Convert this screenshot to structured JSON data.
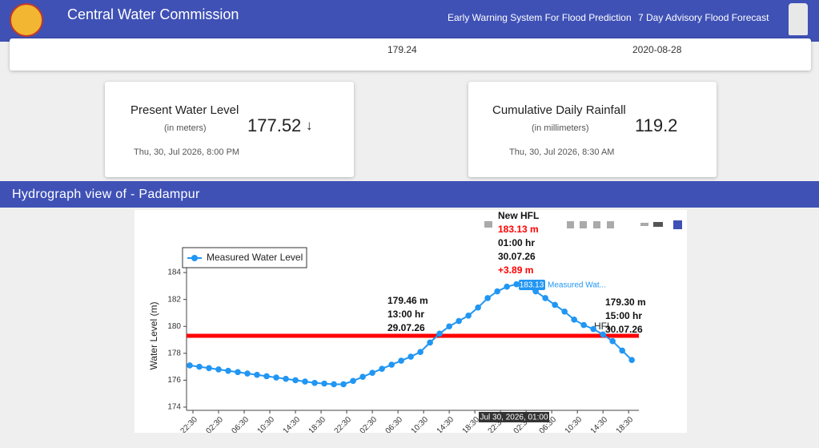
{
  "header": {
    "title": "Central Water Commission",
    "nav": [
      "Early Warning System For Flood Prediction",
      "7 Day Advisory Flood Forecast"
    ]
  },
  "summary_row": {
    "values": [
      "179.24",
      "2020-08-28"
    ]
  },
  "cards": [
    {
      "title": "Present Water Level",
      "unit": "(in meters)",
      "value": "177.52",
      "trend": "↓",
      "time": "Thu, 30, Jul 2026, 8:00 PM"
    },
    {
      "title": "Cumulative Daily Rainfall",
      "unit": "(in millimeters)",
      "value": "119.2",
      "time": "Thu, 30, Jul 2026, 8:30 AM"
    }
  ],
  "section_title": "Hydrograph view of - Padampur",
  "chart_data": {
    "type": "line",
    "ylabel": "Water Level (m)",
    "x": [
      -0.5,
      1,
      2.5,
      4,
      5.5,
      7,
      8.5,
      10,
      11.5,
      13,
      14.5,
      16,
      17.5,
      19,
      20.5,
      22,
      23.5,
      25,
      26.5,
      28,
      29.5,
      31,
      32.5,
      34,
      35.5,
      37,
      38.5,
      40,
      41.5,
      43,
      44.5,
      46,
      47.5,
      49,
      50.5,
      52,
      53.5,
      55,
      56.5,
      58,
      59.5,
      61,
      62.5,
      64,
      65.5,
      67,
      68.5
    ],
    "series": [
      {
        "name": "Measured Water Level",
        "color": "#2196f3",
        "values": [
          177.1,
          177.0,
          176.9,
          176.8,
          176.7,
          176.6,
          176.5,
          176.4,
          176.3,
          176.2,
          176.1,
          176.0,
          175.9,
          175.8,
          175.75,
          175.7,
          175.7,
          175.95,
          176.25,
          176.55,
          176.85,
          177.15,
          177.45,
          177.75,
          178.1,
          178.8,
          179.46,
          180.0,
          180.4,
          180.8,
          181.4,
          182.1,
          182.6,
          182.95,
          183.13,
          183.0,
          182.6,
          182.1,
          181.6,
          181.1,
          180.5,
          180.1,
          179.8,
          179.4,
          178.9,
          178.2,
          177.5
        ]
      }
    ],
    "hfl": {
      "value": 179.3,
      "label": "HFL",
      "color": "#ff0000"
    },
    "xlim": [
      -1,
      69.6
    ],
    "ylim": [
      174,
      184.6
    ],
    "yticks": [
      174,
      176,
      178,
      180,
      182,
      184
    ],
    "xticks": [
      {
        "value": 0,
        "label": "22:30"
      },
      {
        "value": 4,
        "label": "02:30"
      },
      {
        "value": 8,
        "label": "06:30"
      },
      {
        "value": 12,
        "label": "10:30"
      },
      {
        "value": 16,
        "label": "14:30"
      },
      {
        "value": 20,
        "label": "18:30"
      },
      {
        "value": 24,
        "label": "22:30"
      },
      {
        "value": 28,
        "label": "02:30"
      },
      {
        "value": 32,
        "label": "06:30"
      },
      {
        "value": 36,
        "label": "10:30"
      },
      {
        "value": 40,
        "label": "14:30"
      },
      {
        "value": 44,
        "label": "18:30"
      },
      {
        "value": 48,
        "label": "22:30"
      },
      {
        "value": 52,
        "label": "02:30"
      },
      {
        "value": 56,
        "label": "06:30"
      },
      {
        "value": 60,
        "label": "10:30"
      },
      {
        "value": 64,
        "label": "14:30"
      },
      {
        "value": 68,
        "label": "18:30"
      }
    ],
    "annotations": [
      [
        "179.46 m",
        "13:00 hr",
        "29.07.26"
      ],
      [
        "179.30 m",
        "15:00 hr",
        "30.07.26"
      ],
      [
        "New HFL",
        "183.13 m",
        "01:00 hr",
        "30.07.26",
        "+3.89 m"
      ]
    ],
    "tooltip": {
      "value": "183.13",
      "series": "Measured Wat...",
      "x": "Jul 30, 2026, 01:00"
    }
  }
}
